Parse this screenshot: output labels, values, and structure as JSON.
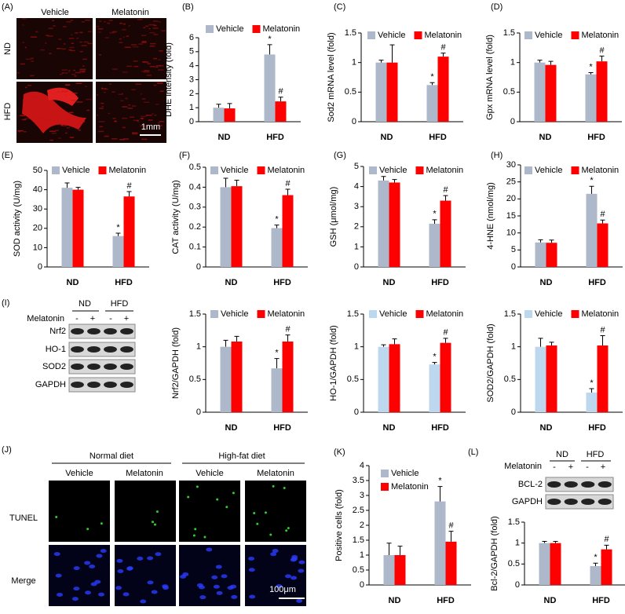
{
  "chart_data": [
    {
      "type": "bar",
      "panel": "(B)",
      "ylabel": "DHE intensity (fold)",
      "categories": [
        "ND",
        "HFD"
      ],
      "ylim": [
        0,
        6
      ],
      "yticks": [
        0,
        1,
        2,
        3,
        4,
        5,
        6
      ],
      "legend": "top",
      "series": [
        {
          "name": "Vehicle",
          "color": "#adb9ca",
          "values": [
            1,
            4.8
          ],
          "errors": [
            0.25,
            0.7
          ],
          "significance": [
            null,
            "*"
          ]
        },
        {
          "name": "Melatonin",
          "color": "#ff0000",
          "values": [
            0.95,
            1.45
          ],
          "errors": [
            0.35,
            0.3
          ],
          "significance": [
            null,
            "#"
          ]
        }
      ]
    },
    {
      "type": "bar",
      "panel": "(C)",
      "ylabel": "Sod2 mRNA level (fold)",
      "categories": [
        "ND",
        "HFD"
      ],
      "ylim": [
        0,
        1.5
      ],
      "yticks": [
        0,
        0.5,
        1,
        1.5
      ],
      "legend": "top",
      "series": [
        {
          "name": "Vehicle",
          "color": "#adb9ca",
          "values": [
            1,
            0.62
          ],
          "errors": [
            0.04,
            0.04
          ],
          "significance": [
            null,
            "*"
          ]
        },
        {
          "name": "Melatonin",
          "color": "#ff0000",
          "values": [
            1,
            1.1
          ],
          "errors": [
            0.3,
            0.06
          ],
          "significance": [
            null,
            "#"
          ]
        }
      ]
    },
    {
      "type": "bar",
      "panel": "(D)",
      "ylabel": "Gpx mRNA level (fold)",
      "categories": [
        "ND",
        "HFD"
      ],
      "ylim": [
        0,
        1.5
      ],
      "yticks": [
        0,
        0.5,
        1,
        1.5
      ],
      "legend": "top",
      "series": [
        {
          "name": "Vehicle",
          "color": "#adb9ca",
          "values": [
            1,
            0.8
          ],
          "errors": [
            0.04,
            0.03
          ],
          "significance": [
            null,
            "*"
          ]
        },
        {
          "name": "Melatonin",
          "color": "#ff0000",
          "values": [
            0.96,
            1.02
          ],
          "errors": [
            0.06,
            0.09
          ],
          "significance": [
            null,
            "#"
          ]
        }
      ]
    },
    {
      "type": "bar",
      "panel": "(E)",
      "ylabel": "SOD activity (U/mg)",
      "categories": [
        "ND",
        "HFD"
      ],
      "ylim": [
        0,
        50
      ],
      "yticks": [
        0,
        10,
        20,
        30,
        40,
        50
      ],
      "legend": "top",
      "series": [
        {
          "name": "Vehicle",
          "color": "#adb9ca",
          "values": [
            41,
            16
          ],
          "errors": [
            2.5,
            1.5
          ],
          "significance": [
            null,
            "*"
          ]
        },
        {
          "name": "Melatonin",
          "color": "#ff0000",
          "values": [
            40,
            36.5
          ],
          "errors": [
            1.2,
            2.5
          ],
          "significance": [
            null,
            "#"
          ]
        }
      ]
    },
    {
      "type": "bar",
      "panel": "(F)",
      "ylabel": "CAT activity (U/mg)",
      "categories": [
        "ND",
        "HFD"
      ],
      "ylim": [
        0,
        0.5
      ],
      "yticks": [
        0,
        0.1,
        0.2,
        0.3,
        0.4,
        0.5
      ],
      "legend": "top",
      "series": [
        {
          "name": "Vehicle",
          "color": "#adb9ca",
          "values": [
            0.4,
            0.195
          ],
          "errors": [
            0.045,
            0.015
          ],
          "significance": [
            null,
            "*"
          ]
        },
        {
          "name": "Melatonin",
          "color": "#ff0000",
          "values": [
            0.405,
            0.36
          ],
          "errors": [
            0.03,
            0.03
          ],
          "significance": [
            null,
            "#"
          ]
        }
      ]
    },
    {
      "type": "bar",
      "panel": "(G)",
      "ylabel": "GSH (μmol/mg)",
      "categories": [
        "ND",
        "HFD"
      ],
      "ylim": [
        0,
        5
      ],
      "yticks": [
        0,
        1,
        2,
        3,
        4,
        5
      ],
      "legend": "top",
      "series": [
        {
          "name": "Vehicle",
          "color": "#adb9ca",
          "values": [
            4.3,
            2.15
          ],
          "errors": [
            0.2,
            0.2
          ],
          "significance": [
            null,
            "*"
          ]
        },
        {
          "name": "Melatonin",
          "color": "#ff0000",
          "values": [
            4.2,
            3.3
          ],
          "errors": [
            0.15,
            0.25
          ],
          "significance": [
            null,
            "#"
          ]
        }
      ]
    },
    {
      "type": "bar",
      "panel": "(H)",
      "ylabel": "4-HNE (nmol/mg)",
      "categories": [
        "ND",
        "HFD"
      ],
      "ylim": [
        0,
        30
      ],
      "yticks": [
        0,
        5,
        10,
        15,
        20,
        25,
        30
      ],
      "legend": "top",
      "series": [
        {
          "name": "Vehicle",
          "color": "#adb9ca",
          "values": [
            7.2,
            21.5
          ],
          "errors": [
            0.8,
            2.2
          ],
          "significance": [
            null,
            "*"
          ]
        },
        {
          "name": "Melatonin",
          "color": "#ff0000",
          "values": [
            7.1,
            12.8
          ],
          "errors": [
            0.8,
            1
          ],
          "significance": [
            null,
            "#"
          ]
        }
      ]
    },
    {
      "type": "bar",
      "ylabel": "Nrf2/GAPDH (fold)",
      "categories": [
        "ND",
        "HFD"
      ],
      "ylim": [
        0,
        1.5
      ],
      "yticks": [
        0,
        0.5,
        1,
        1.5
      ],
      "legend": "top",
      "series": [
        {
          "name": "Vehicle",
          "color": "#adb9ca",
          "values": [
            1,
            0.67
          ],
          "errors": [
            0.1,
            0.15
          ],
          "significance": [
            null,
            "*"
          ]
        },
        {
          "name": "Melatonin",
          "color": "#ff0000",
          "values": [
            1.08,
            1.08
          ],
          "errors": [
            0.08,
            0.1
          ],
          "significance": [
            null,
            "#"
          ]
        }
      ]
    },
    {
      "type": "bar",
      "ylabel": "HO-1/GAPDH (fold)",
      "categories": [
        "ND",
        "HFD"
      ],
      "ylim": [
        0,
        1.5
      ],
      "yticks": [
        0,
        0.5,
        1,
        1.5
      ],
      "legend": "top",
      "series": [
        {
          "name": "Vehicle",
          "color": "#bdd7ee",
          "values": [
            1,
            0.73
          ],
          "errors": [
            0.03,
            0.03
          ],
          "significance": [
            null,
            "*"
          ]
        },
        {
          "name": "Melatonin",
          "color": "#ff0000",
          "values": [
            1.04,
            1.06
          ],
          "errors": [
            0.08,
            0.07
          ],
          "significance": [
            null,
            "#"
          ]
        }
      ]
    },
    {
      "type": "bar",
      "ylabel": "SOD2/GAPDH (fold)",
      "categories": [
        "ND",
        "HFD"
      ],
      "ylim": [
        0,
        1.5
      ],
      "yticks": [
        0,
        0.5,
        1,
        1.5
      ],
      "legend": "top",
      "series": [
        {
          "name": "Vehicle",
          "color": "#bdd7ee",
          "values": [
            1,
            0.3
          ],
          "errors": [
            0.13,
            0.06
          ],
          "significance": [
            null,
            "*"
          ]
        },
        {
          "name": "Melatonin",
          "color": "#ff0000",
          "values": [
            1.02,
            1.02
          ],
          "errors": [
            0.05,
            0.15
          ],
          "significance": [
            null,
            "#"
          ]
        }
      ]
    },
    {
      "type": "bar",
      "panel": "(K)",
      "ylabel": "Positive cells (fold)",
      "categories": [
        "ND",
        "HFD"
      ],
      "ylim": [
        0,
        4
      ],
      "yticks": [
        0,
        0.5,
        1,
        1.5,
        2,
        2.5,
        3,
        3.5,
        4
      ],
      "legend": "top",
      "series": [
        {
          "name": "Vehicle",
          "color": "#adb9ca",
          "values": [
            1,
            2.8
          ],
          "errors": [
            0.4,
            0.5
          ],
          "significance": [
            null,
            "*"
          ]
        },
        {
          "name": "Melatonin",
          "color": "#ff0000",
          "values": [
            1,
            1.45
          ],
          "errors": [
            0.3,
            0.35
          ],
          "significance": [
            null,
            "#"
          ]
        }
      ]
    },
    {
      "type": "bar",
      "ylabel": "Bcl-2/GAPDH (fold)",
      "categories": [
        "ND",
        "HFD"
      ],
      "ylim": [
        0,
        1.5
      ],
      "yticks": [
        0,
        0.5,
        1,
        1.5
      ],
      "series": [
        {
          "color": "#adb9ca",
          "values": [
            1,
            0.45
          ],
          "errors": [
            0.04,
            0.07
          ],
          "significance": [
            null,
            "*"
          ]
        },
        {
          "color": "#ff0000",
          "values": [
            1,
            0.85
          ],
          "errors": [
            0.04,
            0.1
          ],
          "significance": [
            null,
            "#"
          ]
        }
      ]
    }
  ],
  "panel_a": {
    "panel": "(A)",
    "columns": [
      "Vehicle",
      "Melatonin"
    ],
    "rows": [
      "ND",
      "HFD"
    ],
    "scale": "1mm"
  },
  "panel_i": {
    "panel": "(I)",
    "groups": [
      "ND",
      "HFD"
    ],
    "treatment": "Melatonin",
    "signs": [
      "-",
      "+",
      "-",
      "+"
    ],
    "bands": [
      "Nrf2",
      "HO-1",
      "SOD2",
      "GAPDH"
    ]
  },
  "panel_j": {
    "panel": "(J)",
    "groups": [
      "Normal diet",
      "High-fat diet"
    ],
    "columns": [
      "Vehicle",
      "Melatonin",
      "Vehicle",
      "Melatonin"
    ],
    "rows": [
      "TUNEL",
      "Merge"
    ],
    "scale": "100μm"
  },
  "panel_l": {
    "panel": "(L)",
    "groups": [
      "ND",
      "HFD"
    ],
    "treatment": "Melatonin",
    "signs": [
      "-",
      "+",
      "-",
      "+"
    ],
    "bands": [
      "BCL-2",
      "GAPDH"
    ]
  }
}
